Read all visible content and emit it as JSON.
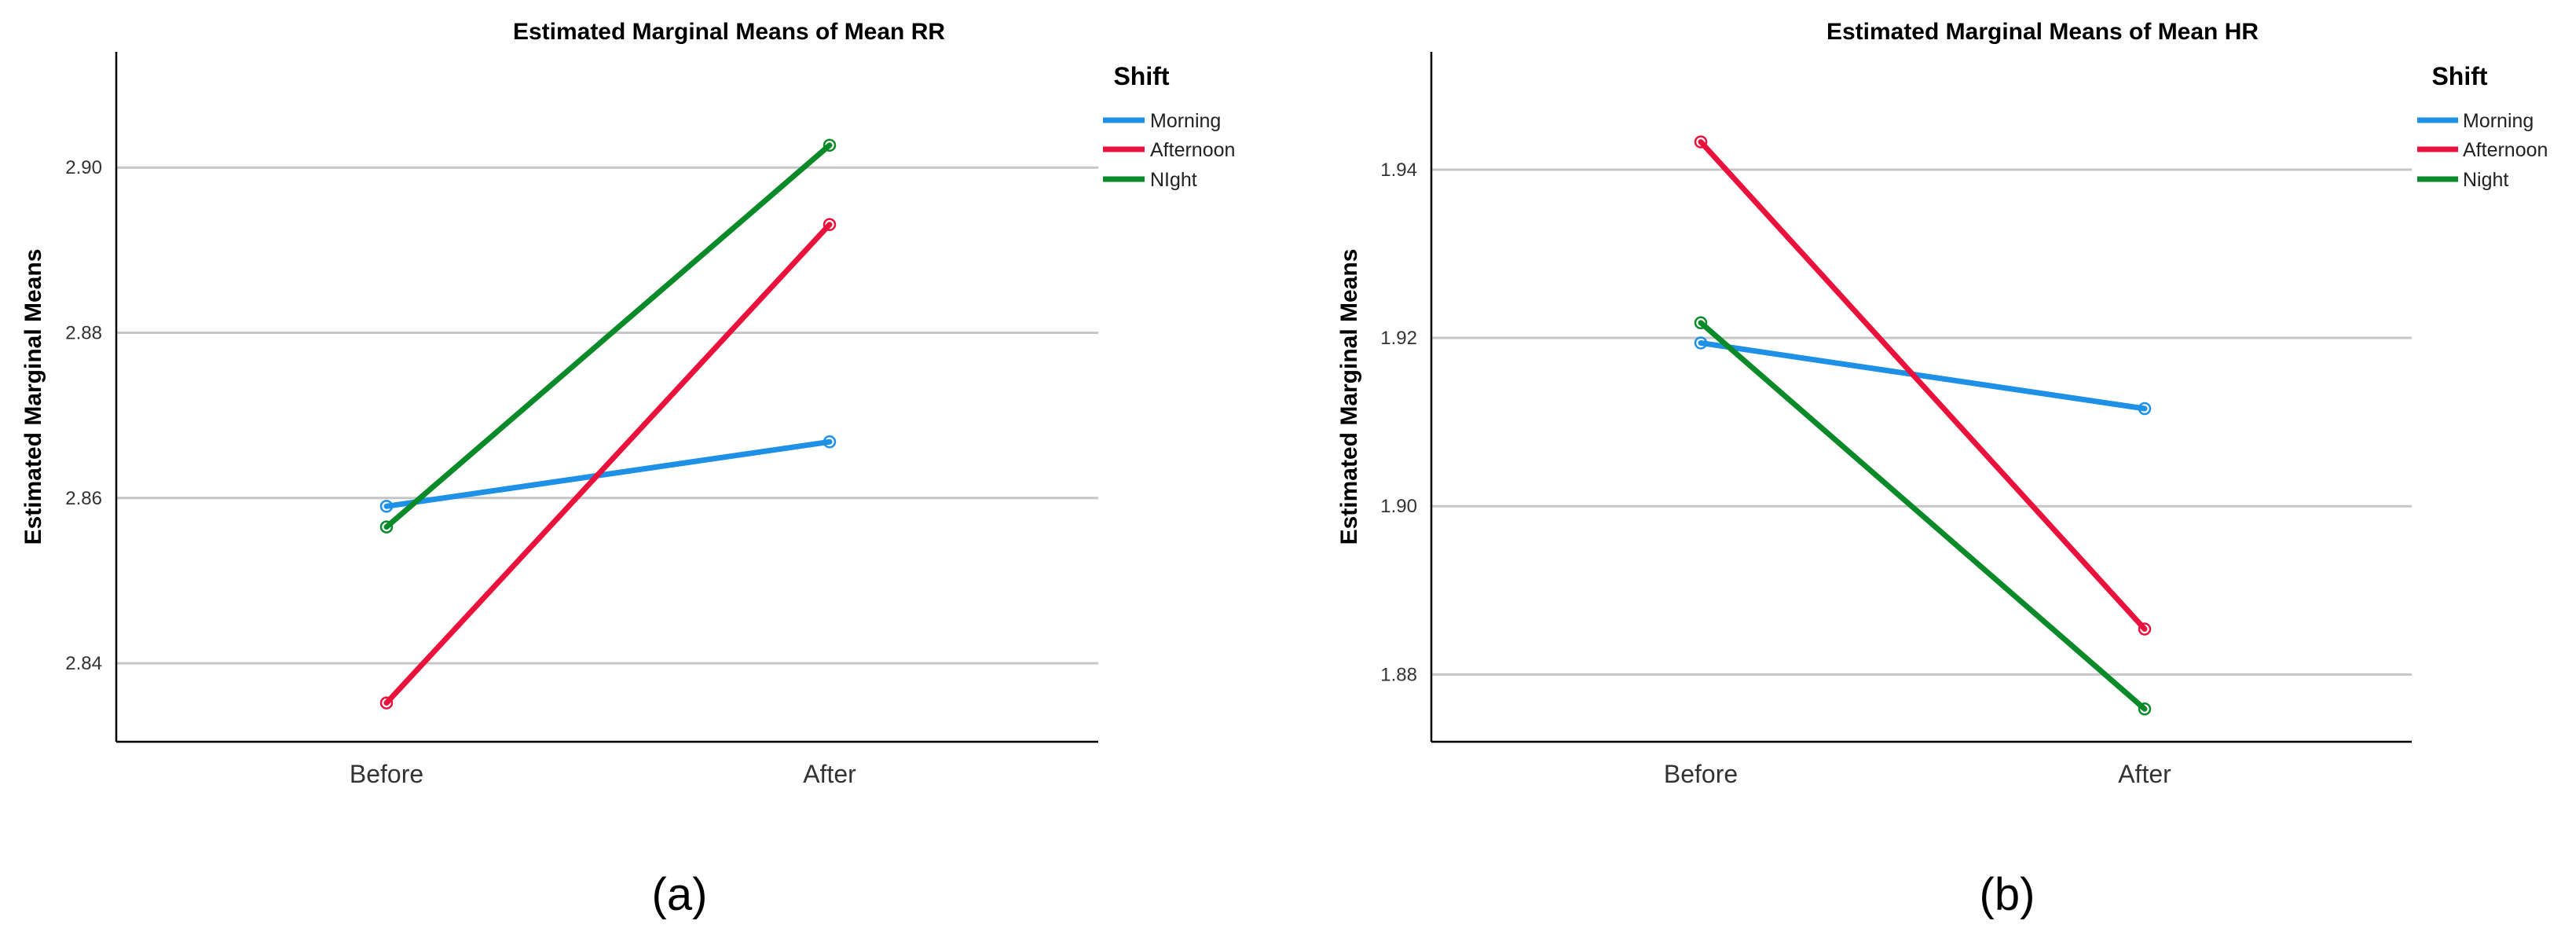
{
  "chart_data": [
    {
      "type": "line",
      "title": "Estimated Marginal Means of Mean RR",
      "xlabel": "",
      "ylabel": "Estimated Marginal Means",
      "categories": [
        "Before",
        "After"
      ],
      "ylim": [
        2.8305,
        2.914
      ],
      "yticks": [
        2.84,
        2.86,
        2.88,
        2.9
      ],
      "ytick_labels": [
        "2.84",
        "2.86",
        "2.88",
        "2.90"
      ],
      "grid": true,
      "legend": {
        "title": "Shift",
        "position": "top-right"
      },
      "series": [
        {
          "name": "Morning",
          "color": "#1e90e6",
          "values": [
            2.859,
            2.8668
          ]
        },
        {
          "name": "Afternoon",
          "color": "#e8123c",
          "values": [
            2.8352,
            2.8931
          ]
        },
        {
          "name": "NIght",
          "color": "#0a8a28",
          "values": [
            2.8565,
            2.9027
          ]
        }
      ],
      "panel_label": "(a)"
    },
    {
      "type": "line",
      "title": "Estimated Marginal Means of Mean HR",
      "xlabel": "",
      "ylabel": "Estimated Marginal Means",
      "categories": [
        "Before",
        "After"
      ],
      "ylim": [
        1.872,
        1.954
      ],
      "yticks": [
        1.88,
        1.9,
        1.92,
        1.94
      ],
      "ytick_labels": [
        "1.88",
        "1.90",
        "1.92",
        "1.94"
      ],
      "grid": true,
      "legend": {
        "title": "Shift",
        "position": "top-right"
      },
      "series": [
        {
          "name": "Morning",
          "color": "#1e90e6",
          "values": [
            1.9194,
            1.9116
          ]
        },
        {
          "name": "Afternoon",
          "color": "#e8123c",
          "values": [
            1.9433,
            1.8854
          ]
        },
        {
          "name": "Night",
          "color": "#0a8a28",
          "values": [
            1.9218,
            1.8759
          ]
        }
      ],
      "panel_label": "(b)"
    }
  ]
}
